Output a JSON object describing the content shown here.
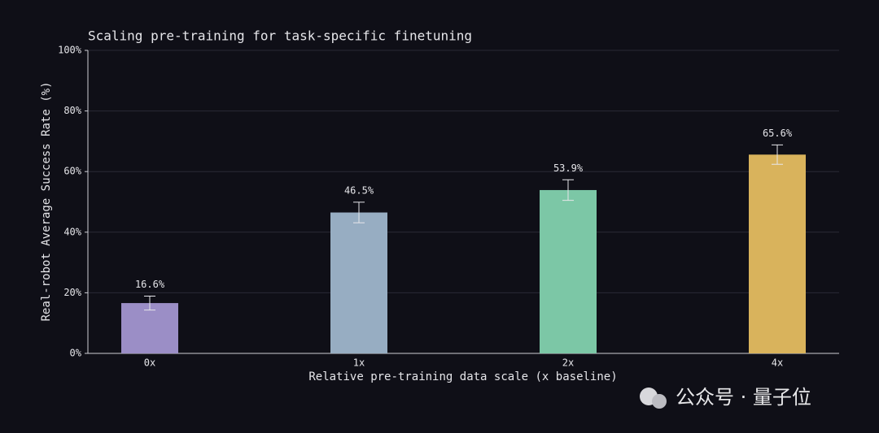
{
  "chart_data": {
    "type": "bar",
    "title": "Scaling pre-training for task-specific finetuning",
    "x_label": "Relative pre-training data scale (x baseline)",
    "y_label": "Real-robot Average Success Rate (%)",
    "categories": [
      "0x",
      "1x",
      "2x",
      "4x"
    ],
    "series": [
      {
        "name": "Success rate",
        "values": [
          16.6,
          46.5,
          53.9,
          65.6
        ],
        "errors": [
          2.3,
          3.4,
          3.4,
          3.2
        ],
        "value_labels": [
          "16.6%",
          "46.5%",
          "53.9%",
          "65.6%"
        ],
        "colors": [
          "#9b8ec6",
          "#97adc2",
          "#7cc7a6",
          "#d9b35c"
        ]
      }
    ],
    "ylim": [
      0,
      100
    ],
    "yticks": [
      {
        "value": 0,
        "label": "0%"
      },
      {
        "value": 20,
        "label": "20%"
      },
      {
        "value": 40,
        "label": "40%"
      },
      {
        "value": 60,
        "label": "60%"
      },
      {
        "value": 80,
        "label": "80%"
      },
      {
        "value": 100,
        "label": "100%"
      }
    ],
    "grid": true,
    "watermark": "公众号 · 量子位"
  }
}
